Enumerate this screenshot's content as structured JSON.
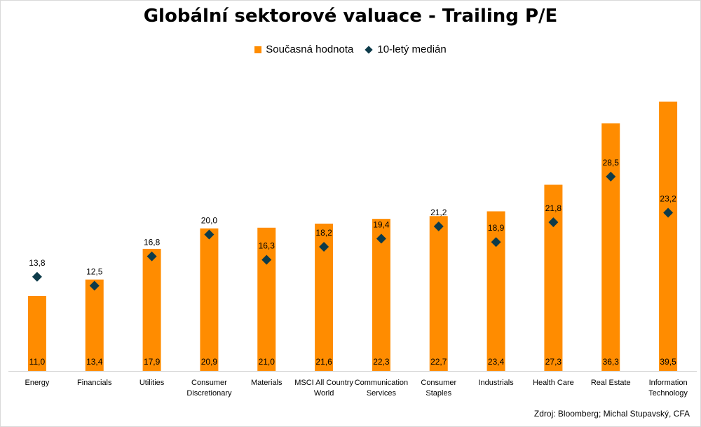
{
  "chart_data": {
    "type": "bar",
    "title": "Globální sektorové valuace - Trailing P/E",
    "categories": [
      "Energy",
      "Financials",
      "Utilities",
      "Consumer Discretionary",
      "Materials",
      "MSCI All Country World",
      "Communication Services",
      "Consumer Staples",
      "Industrials",
      "Health Care",
      "Real Estate",
      "Information Technology"
    ],
    "category_lines": [
      [
        "Energy"
      ],
      [
        "Financials"
      ],
      [
        "Utilities"
      ],
      [
        "Consumer",
        "Discretionary"
      ],
      [
        "Materials"
      ],
      [
        "MSCI All Country",
        "World"
      ],
      [
        "Communication",
        "Services"
      ],
      [
        "Consumer",
        "Staples"
      ],
      [
        "Industrials"
      ],
      [
        "Health Care"
      ],
      [
        "Real Estate"
      ],
      [
        "Information",
        "Technology"
      ]
    ],
    "series": [
      {
        "name": "Současná hodnota",
        "type": "bar",
        "color": "#FF8C00",
        "values": [
          11.0,
          13.4,
          17.9,
          20.9,
          21.0,
          21.6,
          22.3,
          22.7,
          23.4,
          27.3,
          36.3,
          39.5
        ],
        "labels": [
          "11,0",
          "13,4",
          "17,9",
          "20,9",
          "21,0",
          "21,6",
          "22,3",
          "22,7",
          "23,4",
          "27,3",
          "36,3",
          "39,5"
        ]
      },
      {
        "name": "10-letý medián",
        "type": "marker",
        "marker": "diamond",
        "color": "#0D3B4A",
        "values": [
          13.8,
          12.5,
          16.8,
          20.0,
          16.3,
          18.2,
          19.4,
          21.2,
          18.9,
          21.8,
          28.5,
          23.2
        ],
        "labels": [
          "13,8",
          "12,5",
          "16,8",
          "20,0",
          "16,3",
          "18,2",
          "19,4",
          "21,2",
          "18,9",
          "21,8",
          "28,5",
          "23,2"
        ]
      }
    ],
    "ylim": [
      0,
      40
    ],
    "grid": false,
    "legend_position": "top-center"
  },
  "source": "Zdroj: Bloomberg; Michal Stupavský, CFA"
}
